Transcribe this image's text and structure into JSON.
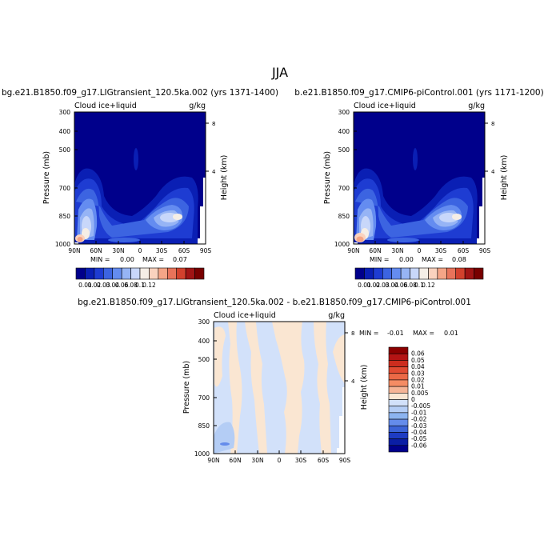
{
  "figure_title": "JJA",
  "chart_data": [
    {
      "type": "heatmap",
      "title": "bg.e21.B1850.f09_g17.LIGtransient_120.5ka.002 (yrs 1371-1400)",
      "variable": "Cloud ice+liquid",
      "units": "g/kg",
      "ylabel": "Pressure (mb)",
      "ylabel_right": "Height (km)",
      "x_ticks": [
        "90N",
        "60N",
        "30N",
        "0",
        "30S",
        "60S",
        "90S"
      ],
      "y_ticks": [
        "300",
        "400",
        "500",
        "700",
        "850",
        "1000"
      ],
      "height_ticks": [
        "8",
        "4"
      ],
      "stats": {
        "min_label": "MIN =",
        "min": "0.00",
        "max_label": "MAX =",
        "max": "0.07"
      },
      "colorbar": {
        "labels": [
          "0.01",
          "0.02",
          "0.03",
          "0.04",
          "0.06",
          "0.08",
          "0.1",
          "0.12"
        ],
        "colors": [
          "#00008b",
          "#0a1fb4",
          "#1e3cd2",
          "#3c64e1",
          "#648cf0",
          "#96b4f5",
          "#c8d7fa",
          "#f5eee6",
          "#fad2be",
          "#f5a587",
          "#e8735a",
          "#d2412d",
          "#a01414",
          "#780000"
        ]
      },
      "features": [
        {
          "lat": 78,
          "p": 950,
          "value": 0.07
        },
        {
          "lat": 65,
          "p": 800,
          "value": 0.05
        },
        {
          "lat": -50,
          "p": 845,
          "value": 0.06
        },
        {
          "lat": -22,
          "p": 850,
          "value": 0.04
        }
      ]
    },
    {
      "type": "heatmap",
      "title": "b.e21.B1850.f09_g17.CMIP6-piControl.001 (yrs 1171-1200)",
      "variable": "Cloud ice+liquid",
      "units": "g/kg",
      "ylabel": "Pressure (mb)",
      "ylabel_right": "Height (km)",
      "x_ticks": [
        "90N",
        "60N",
        "30N",
        "0",
        "30S",
        "60S",
        "90S"
      ],
      "y_ticks": [
        "300",
        "400",
        "500",
        "700",
        "850",
        "1000"
      ],
      "height_ticks": [
        "8",
        "4"
      ],
      "stats": {
        "min_label": "MIN =",
        "min": "0.00",
        "max_label": "MAX =",
        "max": "0.08"
      },
      "colorbar": {
        "labels": [
          "0.01",
          "0.02",
          "0.03",
          "0.04",
          "0.06",
          "0.08",
          "0.1",
          "0.12"
        ],
        "colors": [
          "#00008b",
          "#0a1fb4",
          "#1e3cd2",
          "#3c64e1",
          "#648cf0",
          "#96b4f5",
          "#c8d7fa",
          "#f5eee6",
          "#fad2be",
          "#f5a587",
          "#e8735a",
          "#d2412d",
          "#a01414",
          "#780000"
        ]
      },
      "features": [
        {
          "lat": 80,
          "p": 960,
          "value": 0.08
        },
        {
          "lat": 65,
          "p": 800,
          "value": 0.05
        },
        {
          "lat": -50,
          "p": 845,
          "value": 0.06
        },
        {
          "lat": -22,
          "p": 850,
          "value": 0.04
        }
      ]
    },
    {
      "type": "heatmap",
      "title": "bg.e21.B1850.f09_g17.LIGtransient_120.5ka.002 - b.e21.B1850.f09_g17.CMIP6-piControl.001",
      "variable": "Cloud ice+liquid",
      "units": "g/kg",
      "ylabel": "Pressure (mb)",
      "ylabel_right": "Height (km)",
      "x_ticks": [
        "90N",
        "60N",
        "30N",
        "0",
        "30S",
        "60S",
        "90S"
      ],
      "y_ticks": [
        "300",
        "400",
        "500",
        "700",
        "850",
        "1000"
      ],
      "height_ticks": [
        "8",
        "4"
      ],
      "stats": {
        "min_label": "MIN =",
        "min": "-0.01",
        "max_label": "MAX =",
        "max": "0.01"
      },
      "colorbar": {
        "labels": [
          "0.06",
          "0.05",
          "0.04",
          "0.03",
          "0.02",
          "0.01",
          "0.005",
          "0",
          "-0.005",
          "-0.01",
          "-0.02",
          "-0.03",
          "-0.04",
          "-0.05",
          "-0.06"
        ],
        "colors": [
          "#8b0000",
          "#b41414",
          "#cd2d1e",
          "#e14b32",
          "#eb6946",
          "#f58c64",
          "#f5b496",
          "#fae6d2",
          "#d2e1fa",
          "#b4cdf5",
          "#8cb4f0",
          "#648ceb",
          "#3c64d7",
          "#1e3cc3",
          "#0a1ea5",
          "#00008b"
        ]
      }
    }
  ]
}
